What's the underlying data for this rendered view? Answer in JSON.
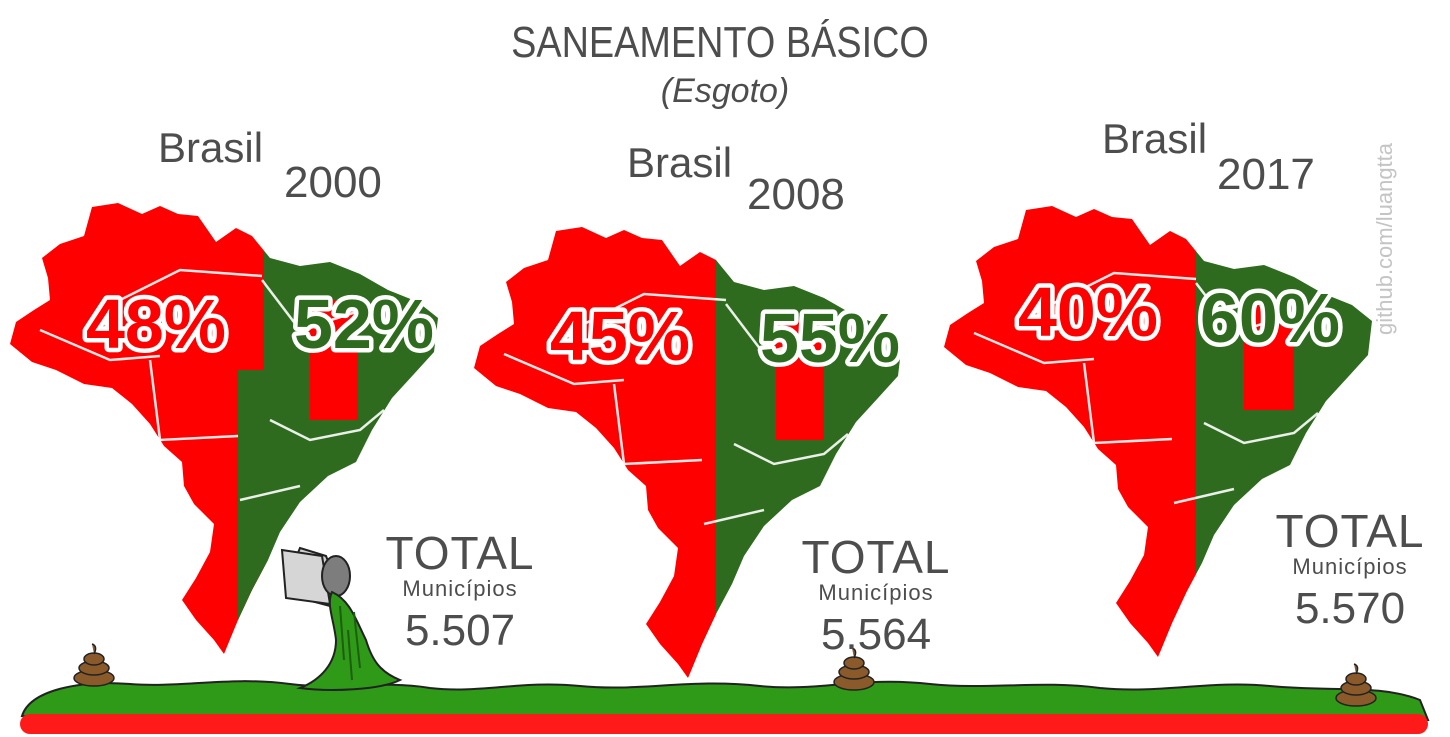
{
  "title": "SANEAMENTO BÁSICO",
  "subtitle": "(Esgoto)",
  "credit": "github.com/luangtta",
  "panels": [
    {
      "country": "Brasil",
      "year": "2000",
      "pct_without": "48%",
      "pct_with": "52%",
      "total_label": "TOTAL",
      "municipios_label": "Municípios",
      "total_value": "5.507"
    },
    {
      "country": "Brasil",
      "year": "2008",
      "pct_without": "45%",
      "pct_with": "55%",
      "total_label": "TOTAL",
      "municipios_label": "Municípios",
      "total_value": "5.564"
    },
    {
      "country": "Brasil",
      "year": "2017",
      "pct_without": "40%",
      "pct_with": "60%",
      "total_label": "TOTAL",
      "municipios_label": "Municípios",
      "total_value": "5.570"
    }
  ],
  "colors": {
    "without_sewage": "#ff0000",
    "with_sewage": "#2e6b1e",
    "ground_green": "#2f9a17",
    "base_red": "#ff1a1a",
    "text": "#4d4d4d"
  },
  "icons": [
    "brazil-map-icon",
    "sewage-pipe-icon",
    "poop-icon"
  ]
}
